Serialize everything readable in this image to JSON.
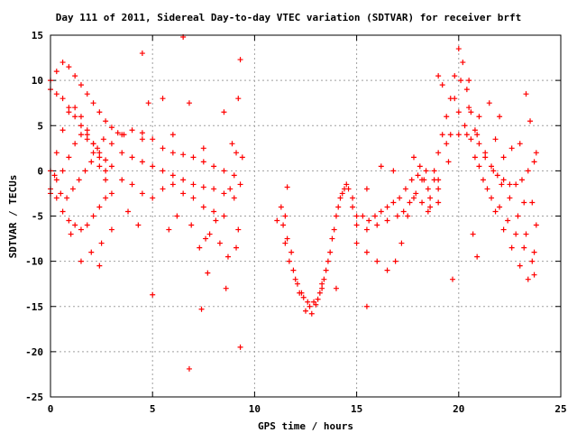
{
  "chart_data": {
    "type": "scatter",
    "title": "Day 111 of 2011, Sidereal Day-to-day VTEC variation (SDTVAR) for receiver brft",
    "xlabel": "GPS time / hours",
    "ylabel": "SDTVAR / TECUs",
    "xlim": [
      0,
      25
    ],
    "ylim": [
      -25,
      15
    ],
    "xticks": [
      "0",
      "5",
      "10",
      "15",
      "20",
      "25"
    ],
    "yticks": [
      "15",
      "10",
      "5",
      "0",
      "-5",
      "-10",
      "-15",
      "-20",
      "-25"
    ],
    "grid": true,
    "marker": "+",
    "color": "#ff0000",
    "series": [
      {
        "points": [
          [
            0.0,
            10.0
          ],
          [
            0.3,
            11.0
          ],
          [
            0.6,
            12.0
          ],
          [
            0.9,
            11.5
          ],
          [
            1.2,
            10.5
          ],
          [
            1.5,
            9.5
          ],
          [
            1.8,
            8.5
          ],
          [
            2.1,
            7.5
          ],
          [
            2.4,
            6.5
          ],
          [
            2.7,
            5.5
          ],
          [
            3.0,
            4.8
          ],
          [
            3.3,
            4.2
          ],
          [
            3.6,
            4.0
          ],
          [
            0.0,
            9.0
          ],
          [
            0.3,
            8.5
          ],
          [
            0.6,
            8.0
          ],
          [
            0.9,
            7.0
          ],
          [
            1.2,
            6.0
          ],
          [
            1.5,
            5.0
          ],
          [
            1.8,
            4.0
          ],
          [
            2.1,
            3.0
          ],
          [
            2.4,
            2.0
          ],
          [
            2.7,
            1.2
          ],
          [
            3.0,
            0.5
          ],
          [
            0.0,
            0.0
          ],
          [
            0.3,
            2.0
          ],
          [
            0.6,
            4.5
          ],
          [
            0.9,
            6.5
          ],
          [
            1.2,
            7.0
          ],
          [
            1.5,
            6.0
          ],
          [
            1.8,
            4.5
          ],
          [
            2.1,
            3.0
          ],
          [
            2.4,
            1.5
          ],
          [
            2.7,
            0.0
          ],
          [
            0.0,
            -2.0
          ],
          [
            0.3,
            -1.0
          ],
          [
            0.6,
            0.0
          ],
          [
            0.9,
            1.5
          ],
          [
            1.2,
            3.0
          ],
          [
            1.5,
            4.0
          ],
          [
            1.8,
            3.5
          ],
          [
            2.1,
            2.0
          ],
          [
            2.4,
            0.5
          ],
          [
            2.7,
            -1.0
          ],
          [
            3.0,
            -2.5
          ],
          [
            0.0,
            -2.5
          ],
          [
            0.3,
            -3.0
          ],
          [
            0.6,
            -4.5
          ],
          [
            0.9,
            -5.5
          ],
          [
            1.2,
            -6.0
          ],
          [
            1.5,
            -6.5
          ],
          [
            1.8,
            -6.0
          ],
          [
            2.1,
            -5.0
          ],
          [
            2.4,
            -4.0
          ],
          [
            2.7,
            -3.0
          ],
          [
            0.2,
            -0.5
          ],
          [
            0.5,
            -2.5
          ],
          [
            0.8,
            -3.0
          ],
          [
            1.1,
            -2.0
          ],
          [
            1.4,
            -1.0
          ],
          [
            1.7,
            0.0
          ],
          [
            2.0,
            1.0
          ],
          [
            2.3,
            2.5
          ],
          [
            2.6,
            3.5
          ],
          [
            3.0,
            3.0
          ],
          [
            3.5,
            4.0
          ],
          [
            4.0,
            4.5
          ],
          [
            4.5,
            4.2
          ],
          [
            5.0,
            3.5
          ],
          [
            5.5,
            2.5
          ],
          [
            6.0,
            2.0
          ],
          [
            6.5,
            1.8
          ],
          [
            7.0,
            1.5
          ],
          [
            7.5,
            1.0
          ],
          [
            8.0,
            0.5
          ],
          [
            8.5,
            0.0
          ],
          [
            9.0,
            -0.5
          ],
          [
            9.3,
            -1.5
          ],
          [
            3.5,
            2.0
          ],
          [
            4.0,
            1.5
          ],
          [
            4.5,
            1.0
          ],
          [
            5.0,
            0.5
          ],
          [
            5.5,
            0.0
          ],
          [
            6.0,
            -0.5
          ],
          [
            6.5,
            -1.0
          ],
          [
            7.0,
            -1.5
          ],
          [
            7.5,
            -1.8
          ],
          [
            8.0,
            -2.0
          ],
          [
            8.5,
            -2.5
          ],
          [
            9.0,
            -3.0
          ],
          [
            3.5,
            -1.0
          ],
          [
            4.0,
            -1.5
          ],
          [
            4.5,
            -2.5
          ],
          [
            5.0,
            -3.0
          ],
          [
            5.5,
            -2.0
          ],
          [
            6.0,
            -1.5
          ],
          [
            6.5,
            -2.5
          ],
          [
            7.0,
            -3.0
          ],
          [
            7.5,
            -4.0
          ],
          [
            8.0,
            -4.5
          ],
          [
            8.5,
            -5.0
          ],
          [
            2.5,
            -8.0
          ],
          [
            2.4,
            -10.5
          ],
          [
            3.0,
            -6.5
          ],
          [
            4.5,
            3.5
          ],
          [
            4.8,
            7.5
          ],
          [
            5.5,
            8.0
          ],
          [
            6.0,
            4.0
          ],
          [
            6.8,
            7.5
          ],
          [
            7.5,
            2.5
          ],
          [
            8.5,
            6.5
          ],
          [
            9.2,
            8.0
          ],
          [
            9.3,
            12.3
          ],
          [
            4.5,
            13.0
          ],
          [
            6.5,
            14.8
          ],
          [
            5.0,
            -13.7
          ],
          [
            7.4,
            -15.3
          ],
          [
            6.8,
            -21.9
          ],
          [
            9.3,
            -19.5
          ],
          [
            8.6,
            -13.0
          ],
          [
            7.7,
            -11.3
          ],
          [
            7.6,
            -7.5
          ],
          [
            8.3,
            -8.0
          ],
          [
            8.7,
            -9.5
          ],
          [
            9.1,
            -8.5
          ],
          [
            9.2,
            -6.5
          ],
          [
            1.5,
            -10.0
          ],
          [
            2.0,
            -9.0
          ],
          [
            1.0,
            -7.0
          ],
          [
            3.8,
            -4.5
          ],
          [
            4.3,
            -6.0
          ],
          [
            5.8,
            -6.5
          ],
          [
            6.2,
            -5.0
          ],
          [
            6.9,
            -6.0
          ],
          [
            7.3,
            -8.5
          ],
          [
            7.8,
            -7.0
          ],
          [
            8.1,
            -5.5
          ],
          [
            8.8,
            -2.0
          ],
          [
            9.4,
            1.5
          ],
          [
            8.9,
            3.0
          ],
          [
            9.1,
            2.0
          ],
          [
            11.3,
            -4.0
          ],
          [
            11.4,
            -6.0
          ],
          [
            11.5,
            -8.0
          ],
          [
            11.7,
            -10.0
          ],
          [
            12.0,
            -12.0
          ],
          [
            12.3,
            -13.5
          ],
          [
            12.6,
            -14.5
          ],
          [
            12.9,
            -14.5
          ],
          [
            13.2,
            -13.5
          ],
          [
            13.4,
            -12.0
          ],
          [
            13.6,
            -10.0
          ],
          [
            13.8,
            -7.5
          ],
          [
            14.0,
            -5.0
          ],
          [
            14.2,
            -3.0
          ],
          [
            14.4,
            -2.0
          ],
          [
            14.6,
            -2.0
          ],
          [
            14.8,
            -3.0
          ],
          [
            11.5,
            -5.0
          ],
          [
            11.8,
            -9.0
          ],
          [
            12.1,
            -12.5
          ],
          [
            12.4,
            -14.0
          ],
          [
            12.7,
            -15.0
          ],
          [
            13.0,
            -14.8
          ],
          [
            13.3,
            -13.0
          ],
          [
            13.5,
            -11.0
          ],
          [
            13.7,
            -9.0
          ],
          [
            13.9,
            -6.5
          ],
          [
            14.1,
            -4.0
          ],
          [
            14.3,
            -2.5
          ],
          [
            11.6,
            -7.5
          ],
          [
            11.9,
            -11.0
          ],
          [
            12.2,
            -13.5
          ],
          [
            12.5,
            -15.5
          ],
          [
            12.8,
            -15.8
          ],
          [
            13.1,
            -14.2
          ],
          [
            13.3,
            -12.5
          ],
          [
            11.6,
            -1.8
          ],
          [
            11.1,
            -5.5
          ],
          [
            14.0,
            -13.0
          ],
          [
            15.5,
            -15.0
          ],
          [
            14.5,
            -1.5
          ],
          [
            14.8,
            -4.0
          ],
          [
            15.0,
            -5.0
          ],
          [
            15.3,
            -5.0
          ],
          [
            15.6,
            -5.5
          ],
          [
            15.9,
            -5.0
          ],
          [
            16.2,
            -4.5
          ],
          [
            16.5,
            -4.0
          ],
          [
            16.8,
            -3.5
          ],
          [
            17.1,
            -3.0
          ],
          [
            17.4,
            -2.0
          ],
          [
            17.7,
            -1.0
          ],
          [
            18.0,
            -0.5
          ],
          [
            18.3,
            -1.0
          ],
          [
            18.6,
            -3.0
          ],
          [
            15.0,
            -6.0
          ],
          [
            15.5,
            -6.5
          ],
          [
            16.0,
            -6.0
          ],
          [
            16.5,
            -5.5
          ],
          [
            17.0,
            -5.0
          ],
          [
            17.3,
            -4.5
          ],
          [
            17.6,
            -3.5
          ],
          [
            17.9,
            -2.5
          ],
          [
            18.2,
            -3.5
          ],
          [
            18.5,
            -4.5
          ],
          [
            15.0,
            -8.0
          ],
          [
            15.5,
            -9.0
          ],
          [
            16.0,
            -10.0
          ],
          [
            16.5,
            -11.0
          ],
          [
            16.9,
            -10.0
          ],
          [
            17.2,
            -8.0
          ],
          [
            17.5,
            -5.0
          ],
          [
            17.8,
            -3.0
          ],
          [
            18.1,
            0.5
          ],
          [
            18.4,
            0.0
          ],
          [
            18.8,
            -1.0
          ],
          [
            15.5,
            -2.0
          ],
          [
            16.2,
            0.5
          ],
          [
            16.8,
            0.0
          ],
          [
            17.8,
            1.5
          ],
          [
            18.5,
            -2.0
          ],
          [
            18.8,
            0.0
          ],
          [
            19.0,
            2.0
          ],
          [
            19.2,
            4.0
          ],
          [
            19.4,
            6.0
          ],
          [
            19.6,
            8.0
          ],
          [
            19.8,
            10.5
          ],
          [
            20.0,
            13.5
          ],
          [
            20.2,
            12.0
          ],
          [
            20.4,
            9.0
          ],
          [
            20.6,
            6.5
          ],
          [
            20.8,
            4.5
          ],
          [
            21.0,
            3.0
          ],
          [
            21.3,
            1.5
          ],
          [
            21.6,
            0.5
          ],
          [
            21.9,
            -0.5
          ],
          [
            22.2,
            -1.0
          ],
          [
            22.5,
            -1.5
          ],
          [
            22.8,
            -1.5
          ],
          [
            23.1,
            -1.0
          ],
          [
            23.4,
            0.0
          ],
          [
            23.7,
            1.0
          ],
          [
            18.6,
            -4.0
          ],
          [
            19.0,
            -1.0
          ],
          [
            19.4,
            3.0
          ],
          [
            19.8,
            8.0
          ],
          [
            20.1,
            10.0
          ],
          [
            20.5,
            7.0
          ],
          [
            20.9,
            4.0
          ],
          [
            21.3,
            2.0
          ],
          [
            21.7,
            0.0
          ],
          [
            22.1,
            -1.5
          ],
          [
            22.5,
            -3.0
          ],
          [
            22.9,
            -5.0
          ],
          [
            23.3,
            -7.0
          ],
          [
            23.7,
            -9.0
          ],
          [
            19.0,
            -2.0
          ],
          [
            19.5,
            1.0
          ],
          [
            20.0,
            4.0
          ],
          [
            20.3,
            5.0
          ],
          [
            20.6,
            3.5
          ],
          [
            21.0,
            0.5
          ],
          [
            21.4,
            -2.0
          ],
          [
            21.8,
            -4.5
          ],
          [
            22.2,
            -6.5
          ],
          [
            22.6,
            -8.5
          ],
          [
            23.0,
            -10.5
          ],
          [
            23.4,
            -12.0
          ],
          [
            23.7,
            -11.5
          ],
          [
            19.6,
            4.0
          ],
          [
            20.0,
            6.5
          ],
          [
            20.4,
            4.0
          ],
          [
            20.8,
            1.5
          ],
          [
            21.2,
            -1.0
          ],
          [
            21.6,
            -3.0
          ],
          [
            22.0,
            -4.0
          ],
          [
            22.4,
            -5.5
          ],
          [
            22.8,
            -7.0
          ],
          [
            23.2,
            -8.5
          ],
          [
            23.6,
            -10.0
          ],
          [
            19.2,
            9.5
          ],
          [
            19.0,
            10.5
          ],
          [
            20.5,
            10.0
          ],
          [
            21.5,
            7.5
          ],
          [
            22.0,
            6.0
          ],
          [
            23.3,
            8.5
          ],
          [
            23.5,
            5.5
          ],
          [
            21.8,
            3.5
          ],
          [
            22.6,
            2.5
          ],
          [
            23.0,
            3.0
          ],
          [
            23.8,
            2.0
          ],
          [
            19.7,
            -12.0
          ],
          [
            20.7,
            -7.0
          ],
          [
            19.0,
            -3.5
          ],
          [
            18.2,
            -1.0
          ],
          [
            20.9,
            -9.5
          ],
          [
            23.8,
            -6.0
          ],
          [
            23.6,
            -3.5
          ],
          [
            23.2,
            -3.5
          ],
          [
            22.2,
            1.5
          ],
          [
            21.0,
            6.0
          ]
        ]
      }
    ]
  }
}
